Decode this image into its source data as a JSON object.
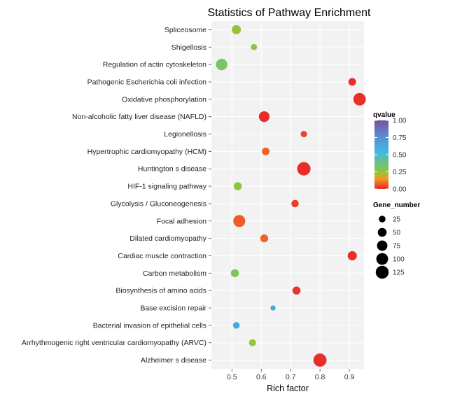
{
  "chart_data": {
    "type": "scatter",
    "title": "Statistics of Pathway Enrichment",
    "xlabel": "Rich factor",
    "ylabel": "",
    "xlim": [
      0.43,
      0.95
    ],
    "xticks": [
      0.5,
      0.6,
      0.7,
      0.8,
      0.9
    ],
    "xtick_labels": [
      "0.5",
      "0.6",
      "0.7",
      "0.8",
      "0.9"
    ],
    "grid": true,
    "categories": [
      "Spliceosome",
      "Shigellosis",
      "Regulation of actin cytoskeleton",
      "Pathogenic Escherichia coli infection",
      "Oxidative phosphorylation",
      "Non-alcoholic fatty liver disease (NAFLD)",
      "Legionellosis",
      "Hypertrophic cardiomyopathy (HCM)",
      "Huntington s disease",
      "HIF-1 signaling pathway",
      "Glycolysis / Gluconeogenesis",
      "Focal adhesion",
      "Dilated cardiomyopathy",
      "Cardiac muscle contraction",
      "Carbon metabolism",
      "Biosynthesis of amino acids",
      "Base excision repair",
      "Bacterial invasion of epithelial cells",
      "Arrhythmogenic right ventricular cardiomyopathy (ARVC)",
      "Alzheimer s disease"
    ],
    "points": [
      {
        "pathway": "Spliceosome",
        "rich_factor": 0.515,
        "qvalue": 0.24,
        "gene_number": 55
      },
      {
        "pathway": "Shigellosis",
        "rich_factor": 0.575,
        "qvalue": 0.25,
        "gene_number": 20
      },
      {
        "pathway": "Regulation of actin cytoskeleton",
        "rich_factor": 0.465,
        "qvalue": 0.32,
        "gene_number": 95
      },
      {
        "pathway": "Pathogenic Escherichia coli infection",
        "rich_factor": 0.91,
        "qvalue": 0.01,
        "gene_number": 35
      },
      {
        "pathway": "Oxidative phosphorylation",
        "rich_factor": 0.935,
        "qvalue": 0.01,
        "gene_number": 115
      },
      {
        "pathway": "Non-alcoholic fatty liver disease (NAFLD)",
        "rich_factor": 0.61,
        "qvalue": 0.01,
        "gene_number": 80
      },
      {
        "pathway": "Legionellosis",
        "rich_factor": 0.745,
        "qvalue": 0.04,
        "gene_number": 22
      },
      {
        "pathway": "Hypertrophic cardiomyopathy (HCM)",
        "rich_factor": 0.615,
        "qvalue": 0.08,
        "gene_number": 35
      },
      {
        "pathway": "Huntington s disease",
        "rich_factor": 0.745,
        "qvalue": 0.01,
        "gene_number": 135
      },
      {
        "pathway": "HIF-1 signaling pathway",
        "rich_factor": 0.52,
        "qvalue": 0.25,
        "gene_number": 40
      },
      {
        "pathway": "Glycolysis / Gluconeogenesis",
        "rich_factor": 0.715,
        "qvalue": 0.03,
        "gene_number": 32
      },
      {
        "pathway": "Focal adhesion",
        "rich_factor": 0.525,
        "qvalue": 0.07,
        "gene_number": 105
      },
      {
        "pathway": "Dilated cardiomyopathy",
        "rich_factor": 0.61,
        "qvalue": 0.08,
        "gene_number": 38
      },
      {
        "pathway": "Cardiac muscle contraction",
        "rich_factor": 0.91,
        "qvalue": 0.01,
        "gene_number": 55
      },
      {
        "pathway": "Carbon metabolism",
        "rich_factor": 0.51,
        "qvalue": 0.3,
        "gene_number": 40
      },
      {
        "pathway": "Biosynthesis of amino acids",
        "rich_factor": 0.72,
        "qvalue": 0.02,
        "gene_number": 40
      },
      {
        "pathway": "Base excision repair",
        "rich_factor": 0.64,
        "qvalue": 0.62,
        "gene_number": 12
      },
      {
        "pathway": "Bacterial invasion of epithelial cells",
        "rich_factor": 0.515,
        "qvalue": 0.62,
        "gene_number": 25
      },
      {
        "pathway": "Arrhythmogenic right ventricular cardiomyopathy (ARVC)",
        "rich_factor": 0.57,
        "qvalue": 0.24,
        "gene_number": 28
      },
      {
        "pathway": "Alzheimer s disease",
        "rich_factor": 0.8,
        "qvalue": 0.01,
        "gene_number": 130
      }
    ],
    "color_legend": {
      "title": "qvalue",
      "ticks": [
        1.0,
        0.75,
        0.5,
        0.25,
        0.0
      ],
      "tick_labels": [
        "1.00",
        "0.75",
        "0.50",
        "0.25",
        "0.00"
      ],
      "colors": {
        "q0": "#e8262b",
        "q015": "#f59a22",
        "q025": "#8cc63f",
        "q055": "#3fb8e8",
        "q080": "#5d86c8",
        "q100": "#7a4ea0"
      }
    },
    "size_legend": {
      "title": "Gene_number",
      "values": [
        25,
        50,
        75,
        100,
        125
      ],
      "labels": [
        "25",
        "50",
        "75",
        "100",
        "125"
      ]
    },
    "panel_background": "#f2f2f2",
    "gridline_color": "#ffffff",
    "legend_position": "right"
  }
}
